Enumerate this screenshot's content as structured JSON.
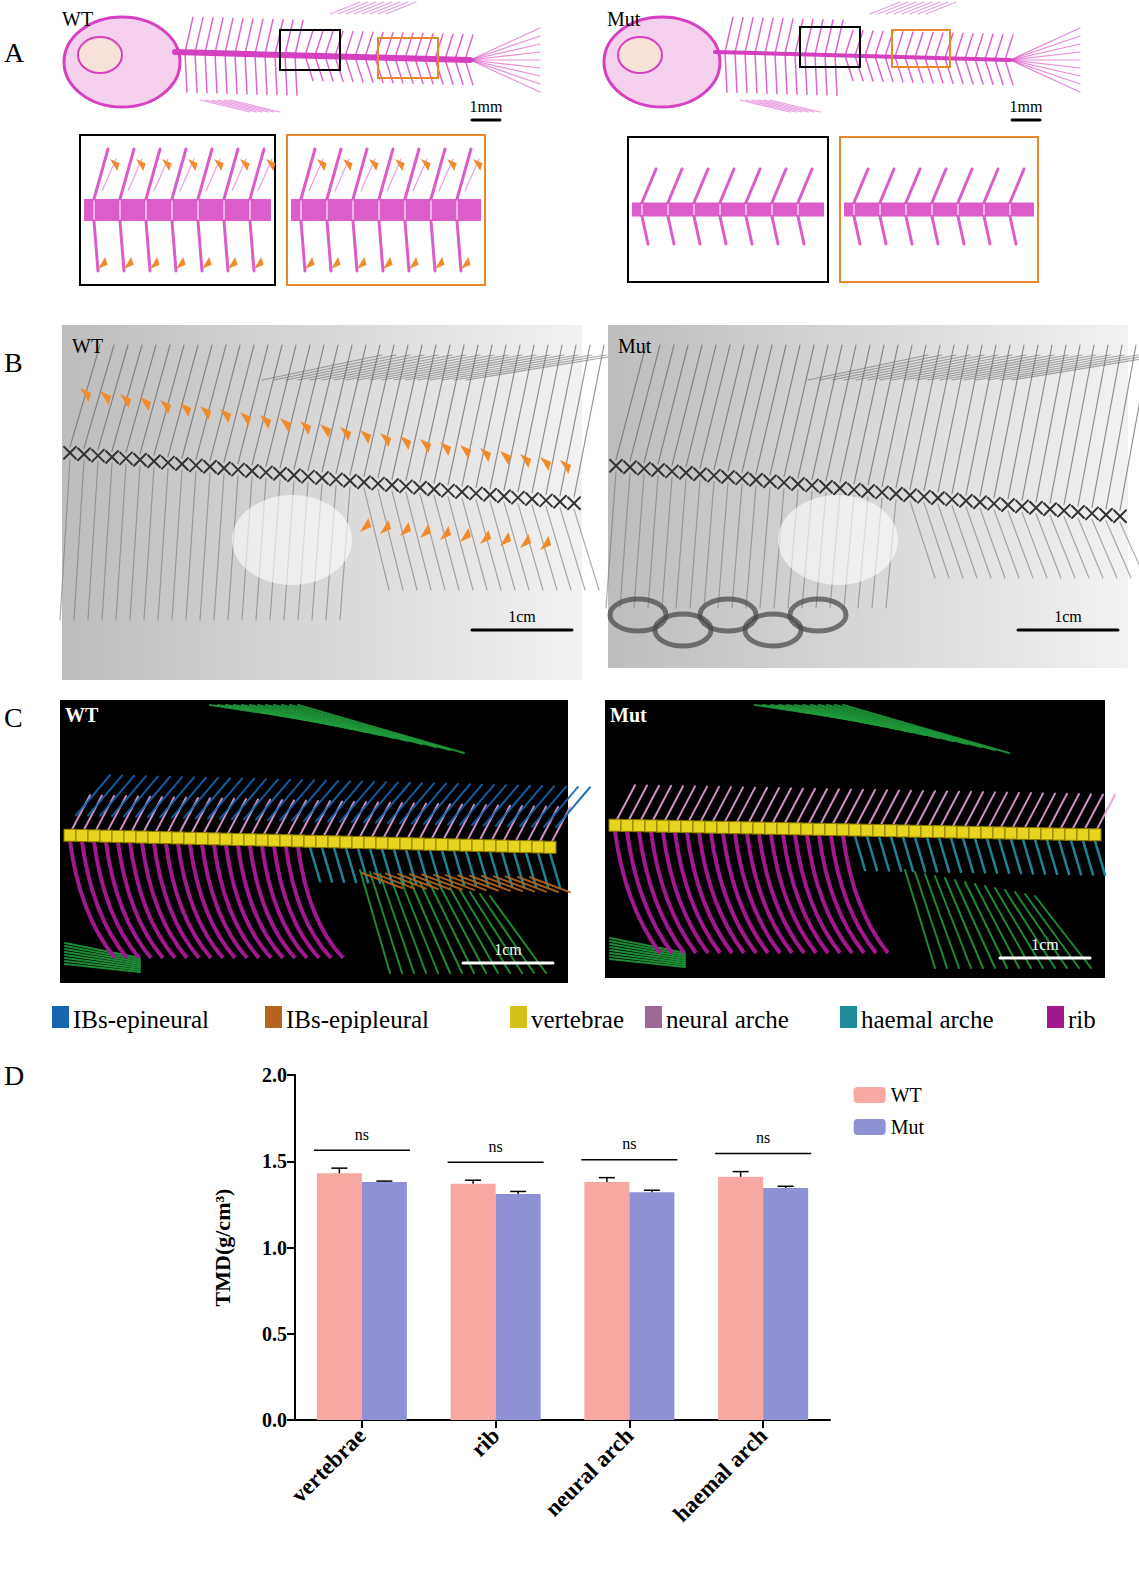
{
  "panels": [
    {
      "label": "A",
      "images": [
        {
          "title": "WT",
          "scale_bar": "1mm"
        },
        {
          "title": "Mut",
          "scale_bar": "1mm"
        }
      ]
    },
    {
      "label": "B",
      "images": [
        {
          "title": "WT",
          "scale_bar": "1cm"
        },
        {
          "title": "Mut",
          "scale_bar": "1cm"
        }
      ]
    },
    {
      "label": "C",
      "images": [
        {
          "title": "WT",
          "scale_bar": "1cm"
        },
        {
          "title": "Mut",
          "scale_bar": "1cm"
        }
      ],
      "legend": [
        {
          "name": "IBs-epineural",
          "color": "#1565b0"
        },
        {
          "name": "IBs-epipleural",
          "color": "#b5651d"
        },
        {
          "name": "vertebrae",
          "color": "#d4c21a"
        },
        {
          "name": "neural arche",
          "color": "#9c6a93"
        },
        {
          "name": "haemal arche",
          "color": "#1f8a99"
        },
        {
          "name": "rib",
          "color": "#a3178f"
        }
      ]
    },
    {
      "label": "D"
    }
  ],
  "chart_data": {
    "type": "bar",
    "categories": [
      "vertebrae",
      "rib",
      "neural arch",
      "haemal arch"
    ],
    "series": [
      {
        "name": "WT",
        "color": "#f7a8a3",
        "values": [
          1.43,
          1.37,
          1.38,
          1.41
        ],
        "errors": [
          0.03,
          0.02,
          0.025,
          0.03
        ]
      },
      {
        "name": "Mut",
        "color": "#8e92d4",
        "values": [
          1.38,
          1.31,
          1.32,
          1.345
        ],
        "errors": [
          0.005,
          0.015,
          0.012,
          0.01
        ]
      }
    ],
    "ylabel": "TMD(g/cm³)",
    "ylim": [
      0,
      2
    ],
    "yticks": [
      {
        "value": 0,
        "label": "0.0"
      },
      {
        "value": 0.5,
        "label": "0.5"
      },
      {
        "value": 1,
        "label": "1.0"
      },
      {
        "value": 1.5,
        "label": "1.5"
      },
      {
        "value": 2,
        "label": "2.0"
      }
    ],
    "grid": false,
    "legend": "top-right",
    "annotations": [
      {
        "text": "ns",
        "category": "vertebrae"
      },
      {
        "text": "ns",
        "category": "rib"
      },
      {
        "text": "ns",
        "category": "neural arch"
      },
      {
        "text": "ns",
        "category": "haemal arch"
      }
    ]
  }
}
